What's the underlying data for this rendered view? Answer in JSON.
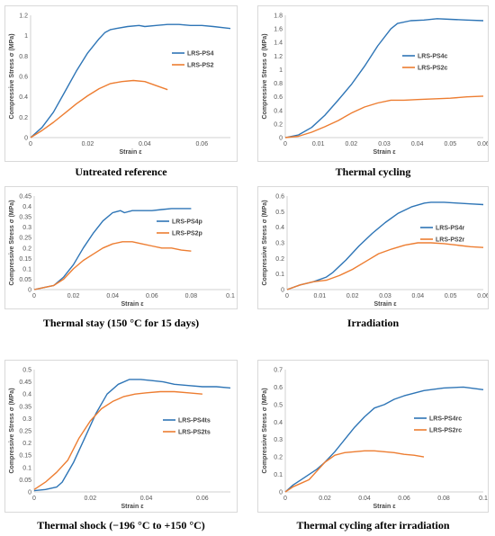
{
  "colors": {
    "series_a": "#2E75B6",
    "series_b": "#ED7D31",
    "axis": "#d0d0d0"
  },
  "chart_data": [
    {
      "type": "line",
      "caption": "Untreated reference",
      "xlabel": "Strain ε",
      "ylabel": "Compressive Stress σ (MPa)",
      "xlim": [
        0,
        0.07
      ],
      "ylim": [
        0,
        1.2
      ],
      "xticks": [
        "0",
        "0.02",
        "0.04",
        "0.06"
      ],
      "xtick_values": [
        0,
        0.02,
        0.04,
        0.06
      ],
      "yticks": [
        "0",
        "0.2",
        "0.4",
        "0.6",
        "0.8",
        "1",
        "1.2"
      ],
      "ytick_values": [
        0,
        0.2,
        0.4,
        0.6,
        0.8,
        1,
        1.2
      ],
      "grid": false,
      "legend_position": "right",
      "series": [
        {
          "name": "LRS-PS4",
          "x": [
            0,
            0.004,
            0.008,
            0.012,
            0.016,
            0.02,
            0.024,
            0.026,
            0.028,
            0.03,
            0.034,
            0.038,
            0.04,
            0.044,
            0.048,
            0.052,
            0.056,
            0.06,
            0.064,
            0.07
          ],
          "y": [
            0,
            0.1,
            0.25,
            0.45,
            0.65,
            0.83,
            0.97,
            1.03,
            1.06,
            1.07,
            1.09,
            1.1,
            1.09,
            1.1,
            1.11,
            1.11,
            1.1,
            1.1,
            1.09,
            1.07
          ]
        },
        {
          "name": "LRS-PS2",
          "x": [
            0,
            0.004,
            0.008,
            0.012,
            0.016,
            0.02,
            0.024,
            0.028,
            0.032,
            0.036,
            0.04,
            0.044,
            0.048
          ],
          "y": [
            0,
            0.07,
            0.15,
            0.24,
            0.33,
            0.41,
            0.48,
            0.53,
            0.55,
            0.56,
            0.55,
            0.51,
            0.47
          ]
        }
      ]
    },
    {
      "type": "line",
      "caption": "Thermal cycling",
      "xlabel": "Strain ε",
      "ylabel": "Compressive Stress σ (MPa)",
      "xlim": [
        0,
        0.06
      ],
      "ylim": [
        0,
        1.8
      ],
      "xticks": [
        "0",
        "0.01",
        "0.02",
        "0.03",
        "0.04",
        "0.05",
        "0.06"
      ],
      "xtick_values": [
        0,
        0.01,
        0.02,
        0.03,
        0.04,
        0.05,
        0.06
      ],
      "yticks": [
        "0",
        "0.2",
        "0.4",
        "0.6",
        "0.8",
        "1",
        "1.2",
        "1.4",
        "1.6",
        "1.8"
      ],
      "ytick_values": [
        0,
        0.2,
        0.4,
        0.6,
        0.8,
        1,
        1.2,
        1.4,
        1.6,
        1.8
      ],
      "grid": false,
      "legend_position": "right",
      "series": [
        {
          "name": "LRS-PS4c",
          "x": [
            0,
            0.004,
            0.008,
            0.012,
            0.016,
            0.02,
            0.024,
            0.028,
            0.032,
            0.034,
            0.038,
            0.042,
            0.046,
            0.05,
            0.055,
            0.06
          ],
          "y": [
            0,
            0.04,
            0.15,
            0.33,
            0.55,
            0.78,
            1.05,
            1.35,
            1.6,
            1.68,
            1.72,
            1.73,
            1.75,
            1.74,
            1.73,
            1.72
          ]
        },
        {
          "name": "LRS-PS2c",
          "x": [
            0,
            0.004,
            0.008,
            0.012,
            0.016,
            0.02,
            0.024,
            0.028,
            0.032,
            0.036,
            0.04,
            0.045,
            0.05,
            0.055,
            0.06
          ],
          "y": [
            0,
            0.02,
            0.08,
            0.16,
            0.25,
            0.36,
            0.45,
            0.51,
            0.55,
            0.55,
            0.56,
            0.57,
            0.58,
            0.6,
            0.61
          ]
        }
      ]
    },
    {
      "type": "line",
      "caption": "Thermal stay (150 °C for 15 days)",
      "xlabel": "Strain ε",
      "ylabel": "Compressive Stress σ (MPa)",
      "xlim": [
        0,
        0.1
      ],
      "ylim": [
        0,
        0.45
      ],
      "xticks": [
        "0",
        "0.02",
        "0.04",
        "0.06",
        "0.08",
        "0.1"
      ],
      "xtick_values": [
        0,
        0.02,
        0.04,
        0.06,
        0.08,
        0.1
      ],
      "yticks": [
        "0",
        "0.05",
        "0.1",
        "0.15",
        "0.2",
        "0.25",
        "0.3",
        "0.35",
        "0.4",
        "0.45"
      ],
      "ytick_values": [
        0,
        0.05,
        0.1,
        0.15,
        0.2,
        0.25,
        0.3,
        0.35,
        0.4,
        0.45
      ],
      "grid": false,
      "legend_position": "right",
      "series": [
        {
          "name": "LRS-PS4p",
          "x": [
            0,
            0.005,
            0.01,
            0.015,
            0.02,
            0.025,
            0.03,
            0.035,
            0.04,
            0.044,
            0.046,
            0.05,
            0.055,
            0.06,
            0.065,
            0.07,
            0.075,
            0.08
          ],
          "y": [
            0,
            0.01,
            0.02,
            0.06,
            0.12,
            0.2,
            0.27,
            0.33,
            0.37,
            0.38,
            0.37,
            0.38,
            0.38,
            0.38,
            0.385,
            0.39,
            0.39,
            0.39
          ]
        },
        {
          "name": "LRS-PS2p",
          "x": [
            0,
            0.005,
            0.01,
            0.015,
            0.02,
            0.025,
            0.03,
            0.035,
            0.04,
            0.045,
            0.05,
            0.055,
            0.06,
            0.065,
            0.07,
            0.075,
            0.08
          ],
          "y": [
            0,
            0.01,
            0.02,
            0.05,
            0.1,
            0.14,
            0.17,
            0.2,
            0.22,
            0.23,
            0.23,
            0.22,
            0.21,
            0.2,
            0.2,
            0.19,
            0.185
          ]
        }
      ]
    },
    {
      "type": "line",
      "caption": "Irradiation",
      "xlabel": "Strain ε",
      "ylabel": "Compressive Stress σ (MPa)",
      "xlim": [
        0,
        0.06
      ],
      "ylim": [
        0,
        0.6
      ],
      "xticks": [
        "0",
        "0.01",
        "0.02",
        "0.03",
        "0.04",
        "0.05",
        "0.06"
      ],
      "xtick_values": [
        0,
        0.01,
        0.02,
        0.03,
        0.04,
        0.05,
        0.06
      ],
      "yticks": [
        "0",
        "0.1",
        "0.2",
        "0.3",
        "0.4",
        "0.5",
        "0.6"
      ],
      "ytick_values": [
        0,
        0.1,
        0.2,
        0.3,
        0.4,
        0.5,
        0.6
      ],
      "grid": false,
      "legend_position": "right",
      "series": [
        {
          "name": "LRS-PS4r",
          "x": [
            0,
            0.004,
            0.008,
            0.012,
            0.014,
            0.018,
            0.022,
            0.026,
            0.03,
            0.034,
            0.038,
            0.042,
            0.044,
            0.048,
            0.052,
            0.056,
            0.06
          ],
          "y": [
            0,
            0.03,
            0.05,
            0.08,
            0.11,
            0.19,
            0.28,
            0.36,
            0.43,
            0.49,
            0.53,
            0.555,
            0.56,
            0.56,
            0.555,
            0.55,
            0.545
          ]
        },
        {
          "name": "LRS-PS2r",
          "x": [
            0,
            0.004,
            0.008,
            0.012,
            0.016,
            0.02,
            0.024,
            0.028,
            0.032,
            0.036,
            0.04,
            0.044,
            0.048,
            0.052,
            0.056,
            0.06
          ],
          "y": [
            0,
            0.03,
            0.05,
            0.06,
            0.09,
            0.13,
            0.18,
            0.23,
            0.26,
            0.285,
            0.3,
            0.3,
            0.295,
            0.285,
            0.275,
            0.27
          ]
        }
      ]
    },
    {
      "type": "line",
      "caption": "Thermal shock (−196 °C to +150 °C)",
      "xlabel": "Strain ε",
      "ylabel": "Compressive Stress σ (MPa)",
      "xlim": [
        0,
        0.07
      ],
      "ylim": [
        0,
        0.5
      ],
      "xticks": [
        "0",
        "0.02",
        "0.04",
        "0.06"
      ],
      "xtick_values": [
        0,
        0.02,
        0.04,
        0.06
      ],
      "yticks": [
        "0",
        "0.05",
        "0.1",
        "0.15",
        "0.2",
        "0.25",
        "0.3",
        "0.35",
        "0.4",
        "0.45",
        "0.5"
      ],
      "ytick_values": [
        0,
        0.05,
        0.1,
        0.15,
        0.2,
        0.25,
        0.3,
        0.35,
        0.4,
        0.45,
        0.5
      ],
      "grid": false,
      "legend_position": "right",
      "series": [
        {
          "name": "LRS-PS4ts",
          "x": [
            0,
            0.004,
            0.008,
            0.01,
            0.014,
            0.018,
            0.022,
            0.026,
            0.03,
            0.034,
            0.038,
            0.042,
            0.046,
            0.05,
            0.055,
            0.06,
            0.065,
            0.07
          ],
          "y": [
            0.005,
            0.01,
            0.02,
            0.04,
            0.12,
            0.22,
            0.32,
            0.4,
            0.44,
            0.46,
            0.46,
            0.455,
            0.45,
            0.44,
            0.435,
            0.43,
            0.43,
            0.425
          ]
        },
        {
          "name": "LRS-PS2ts",
          "x": [
            0,
            0.004,
            0.008,
            0.012,
            0.016,
            0.02,
            0.024,
            0.028,
            0.032,
            0.036,
            0.04,
            0.045,
            0.05,
            0.055,
            0.06
          ],
          "y": [
            0.01,
            0.04,
            0.08,
            0.13,
            0.22,
            0.29,
            0.34,
            0.37,
            0.39,
            0.4,
            0.405,
            0.41,
            0.41,
            0.405,
            0.4
          ]
        }
      ]
    },
    {
      "type": "line",
      "caption": "Thermal cycling after irradiation",
      "xlabel": "Strain ε",
      "ylabel": "Compressive Stress σ (MPa)",
      "xlim": [
        0,
        0.1
      ],
      "ylim": [
        0,
        0.7
      ],
      "xticks": [
        "0",
        "0.02",
        "0.04",
        "0.06",
        "0.08",
        "0.1"
      ],
      "xtick_values": [
        0,
        0.02,
        0.04,
        0.06,
        0.08,
        0.1
      ],
      "yticks": [
        "0",
        "0.1",
        "0.2",
        "0.3",
        "0.4",
        "0.5",
        "0.6",
        "0.7"
      ],
      "ytick_values": [
        0,
        0.1,
        0.2,
        0.3,
        0.4,
        0.5,
        0.6,
        0.7
      ],
      "grid": false,
      "legend_position": "right",
      "series": [
        {
          "name": "LRS-PS4rc",
          "x": [
            0,
            0.004,
            0.008,
            0.012,
            0.016,
            0.02,
            0.025,
            0.03,
            0.035,
            0.04,
            0.045,
            0.05,
            0.055,
            0.06,
            0.07,
            0.08,
            0.09,
            0.1
          ],
          "y": [
            0,
            0.04,
            0.07,
            0.1,
            0.13,
            0.17,
            0.23,
            0.3,
            0.37,
            0.43,
            0.48,
            0.5,
            0.53,
            0.55,
            0.58,
            0.595,
            0.6,
            0.585
          ]
        },
        {
          "name": "LRS-PS2rc",
          "x": [
            0,
            0.004,
            0.008,
            0.012,
            0.016,
            0.02,
            0.025,
            0.03,
            0.035,
            0.04,
            0.045,
            0.05,
            0.055,
            0.06,
            0.065,
            0.07
          ],
          "y": [
            0,
            0.03,
            0.05,
            0.07,
            0.12,
            0.17,
            0.21,
            0.225,
            0.23,
            0.235,
            0.235,
            0.23,
            0.225,
            0.215,
            0.21,
            0.2
          ]
        }
      ]
    }
  ]
}
